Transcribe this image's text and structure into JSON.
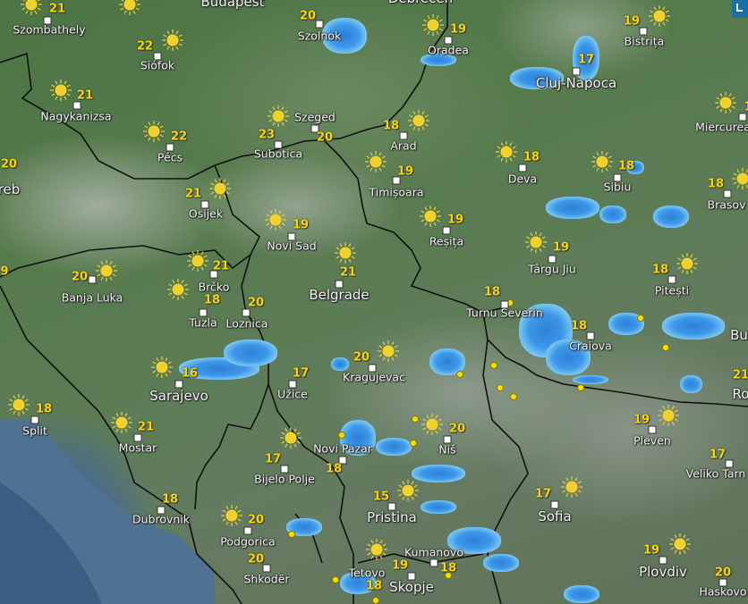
{
  "map": {
    "control_button_icon": "layers-icon",
    "weather_icon": "sun-icon",
    "colors": {
      "sun": "#f5d60a",
      "temperature": "#f5d60a",
      "rain": "#3d98e8",
      "lightning": "#f5e000",
      "control": "#1a6ea8"
    },
    "cities": [
      {
        "name": "Szombathely",
        "temp": "21"
      },
      {
        "name": "Budapest",
        "temp": ""
      },
      {
        "name": "Siófok",
        "temp": "22"
      },
      {
        "name": "Nagykanizsa",
        "temp": "21"
      },
      {
        "name": "Pécs",
        "temp": "22"
      },
      {
        "name": "Szolnok",
        "temp": "20"
      },
      {
        "name": "Szeged",
        "temp": "20"
      },
      {
        "name": "Subotica",
        "temp": "23"
      },
      {
        "name": "Debrecen",
        "temp": ""
      },
      {
        "name": "Oradea",
        "temp": "19"
      },
      {
        "name": "Arad",
        "temp": "18"
      },
      {
        "name": "Timișoara",
        "temp": "19"
      },
      {
        "name": "Reșița",
        "temp": "19"
      },
      {
        "name": "Deva",
        "temp": "18"
      },
      {
        "name": "Cluj-Napoca",
        "temp": "17"
      },
      {
        "name": "Bistrița",
        "temp": "19"
      },
      {
        "name": "Sibiu",
        "temp": "18"
      },
      {
        "name": "Miercurea",
        "temp": "1"
      },
      {
        "name": "Brasov",
        "temp": "18"
      },
      {
        "name": "Târgu Jiu",
        "temp": "19"
      },
      {
        "name": "Pitești",
        "temp": "18"
      },
      {
        "name": "Turnu Severin",
        "temp": "18"
      },
      {
        "name": "Craiova",
        "temp": "18"
      },
      {
        "name": "Osijek",
        "temp": "21"
      },
      {
        "name": "Novi Sad",
        "temp": "19"
      },
      {
        "name": "Belgrade",
        "temp": "21"
      },
      {
        "name": "Banja Luka",
        "temp": "20"
      },
      {
        "name": "Brčko",
        "temp": "21"
      },
      {
        "name": "Tuzla",
        "temp": "18"
      },
      {
        "name": "Loznica",
        "temp": "20"
      },
      {
        "name": "Sarajevo",
        "temp": "16"
      },
      {
        "name": "Užice",
        "temp": "17"
      },
      {
        "name": "Kragujevac",
        "temp": "20"
      },
      {
        "name": "Split",
        "temp": "18"
      },
      {
        "name": "Mostar",
        "temp": "21"
      },
      {
        "name": "Novi Pazar",
        "temp": "18"
      },
      {
        "name": "Niš",
        "temp": "20"
      },
      {
        "name": "Bijelo Polje",
        "temp": "17"
      },
      {
        "name": "Dubrovnik",
        "temp": "18"
      },
      {
        "name": "Podgorica",
        "temp": "20"
      },
      {
        "name": "Shkodër",
        "temp": "20"
      },
      {
        "name": "Pristina",
        "temp": "15"
      },
      {
        "name": "Sofia",
        "temp": "17"
      },
      {
        "name": "Pleven",
        "temp": "19"
      },
      {
        "name": "Veliko Tarn",
        "temp": "17"
      },
      {
        "name": "Kumanovo",
        "temp": "18"
      },
      {
        "name": "Skopje",
        "temp": "18"
      },
      {
        "name": "Tetovo",
        "temp": "19"
      },
      {
        "name": "Plovdiv",
        "temp": "19"
      },
      {
        "name": "Haskovo",
        "temp": "20"
      },
      {
        "name": "Ro",
        "temp": "21"
      },
      {
        "name": "Bu",
        "temp": ""
      },
      {
        "name": "reb",
        "temp": "20"
      },
      {
        "name": "",
        "temp": "9"
      }
    ]
  }
}
